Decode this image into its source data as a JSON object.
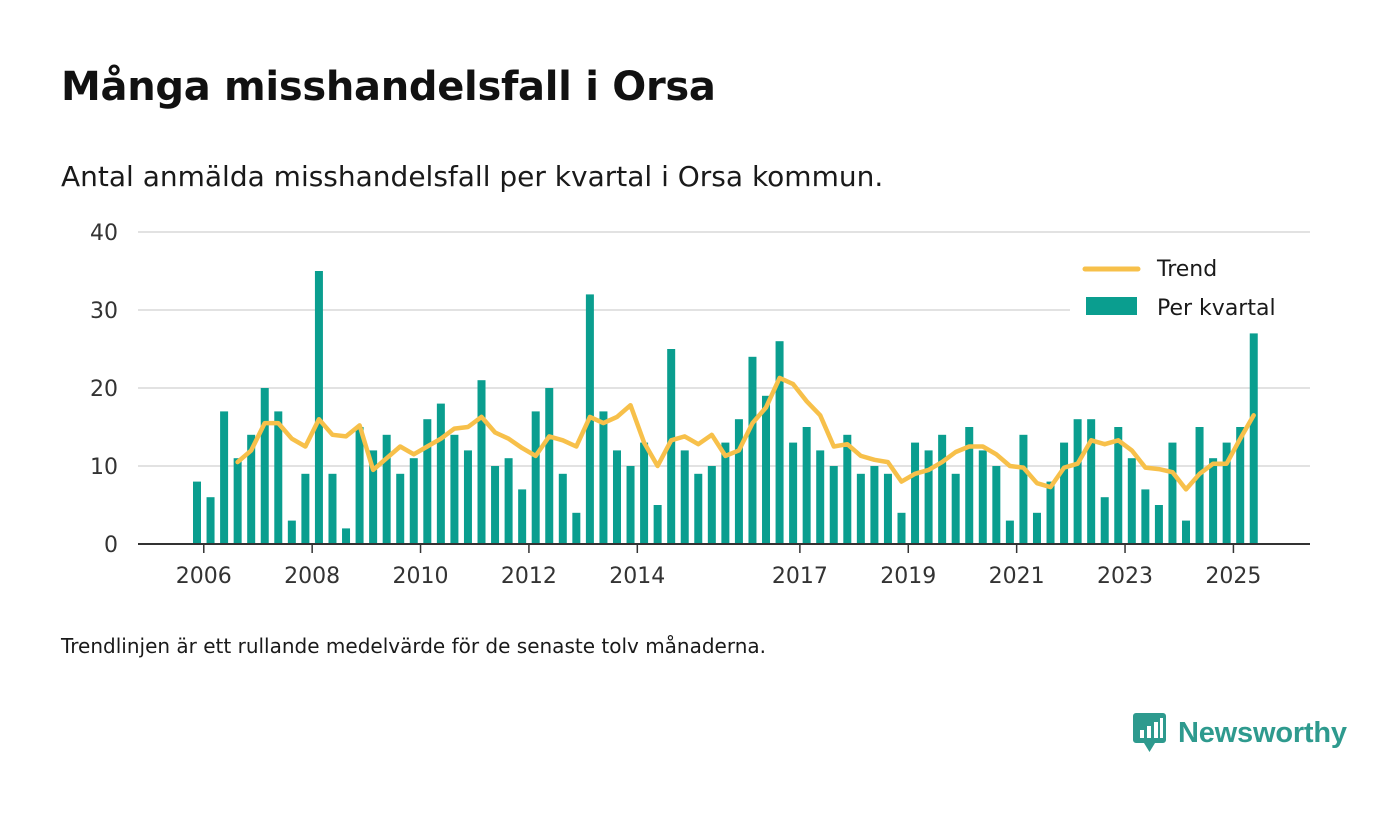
{
  "header": {
    "title": "Många misshandelsfall i Orsa",
    "subtitle": "Antal anmälda misshandelsfall per kvartal i Orsa kommun."
  },
  "footnote": "Trendlinjen är ett rullande medelvärde för de senaste tolv månaderna.",
  "brand": {
    "name": "Newsworthy",
    "color": "#2e9a8e"
  },
  "chart_data": {
    "type": "bar",
    "title": "",
    "xlabel": "",
    "ylabel": "",
    "ylim": [
      0,
      40
    ],
    "y_ticks": [
      "0",
      "10",
      "20",
      "30",
      "40"
    ],
    "x_tick_labels": [
      "2006",
      "2008",
      "2010",
      "2012",
      "2014",
      "2017",
      "2019",
      "2021",
      "2023",
      "2025"
    ],
    "x_tick_positions": [
      0.5,
      8.5,
      16.5,
      24.5,
      32.5,
      44.5,
      52.5,
      60.5,
      68.5,
      76.5
    ],
    "legend": {
      "position": "top-right",
      "entries": [
        {
          "label": "Trend",
          "kind": "line"
        },
        {
          "label": "Per kvartal",
          "kind": "bar"
        }
      ]
    },
    "series": [
      {
        "name": "Per kvartal",
        "kind": "bar",
        "color": "#0a9e8f",
        "values": [
          8,
          6,
          17,
          11,
          14,
          20,
          17,
          3,
          9,
          35,
          9,
          2,
          15,
          12,
          14,
          9,
          11,
          16,
          18,
          14,
          12,
          21,
          10,
          11,
          7,
          17,
          20,
          9,
          4,
          32,
          17,
          12,
          10,
          13,
          5,
          25,
          12,
          9,
          10,
          13,
          16,
          24,
          19,
          26,
          13,
          15,
          12,
          10,
          14,
          9,
          10,
          9,
          4,
          13,
          12,
          14,
          9,
          15,
          12,
          10,
          3,
          14,
          4,
          8,
          13,
          16,
          16,
          6,
          15,
          11,
          7,
          5,
          13,
          3,
          15,
          11,
          13,
          15,
          27
        ]
      },
      {
        "name": "Trend",
        "kind": "line",
        "color": "#f7c04a",
        "start_index": 3,
        "values": [
          10.5,
          12,
          15.5,
          15.5,
          13.5,
          12.5,
          16,
          14,
          13.8,
          15.2,
          9.5,
          11,
          12.5,
          11.5,
          12.5,
          13.5,
          14.8,
          15,
          16.3,
          14.3,
          13.5,
          12.3,
          11.3,
          13.8,
          13.3,
          12.5,
          16.3,
          15.5,
          16.3,
          17.8,
          13,
          10,
          13.3,
          13.8,
          12.8,
          14,
          11.3,
          12,
          15.5,
          17.5,
          21.3,
          20.5,
          18.3,
          16.5,
          12.5,
          12.8,
          11.3,
          10.8,
          10.5,
          8,
          9,
          9.5,
          10.5,
          11.8,
          12.5,
          12.5,
          11.5,
          10,
          9.8,
          7.8,
          7.3,
          9.8,
          10.3,
          13.3,
          12.8,
          13.3,
          12,
          9.8,
          9.6,
          9.2,
          7,
          9,
          10.3,
          10.3,
          13.5,
          16.5
        ]
      }
    ]
  }
}
